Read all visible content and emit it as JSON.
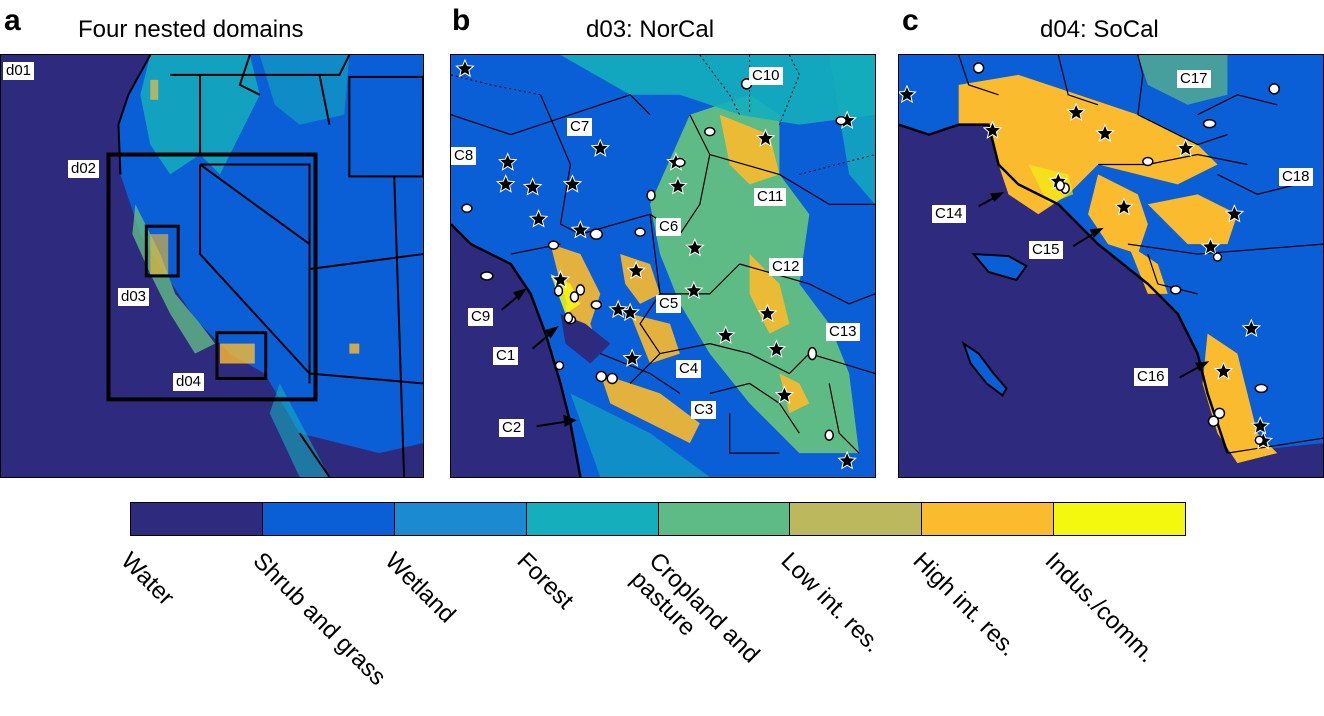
{
  "panels": {
    "a": {
      "letter": "a",
      "title": "Four nested domains",
      "labels": {
        "d01": "d01",
        "d02": "d02",
        "d03": "d03",
        "d04": "d04"
      }
    },
    "b": {
      "letter": "b",
      "title": "d03: NorCal",
      "labels": [
        "C10",
        "C7",
        "C8",
        "C11",
        "C6",
        "C12",
        "C5",
        "C9",
        "C1",
        "C13",
        "C4",
        "C3",
        "C2"
      ]
    },
    "c": {
      "letter": "c",
      "title": "d04: SoCal",
      "labels": [
        "C17",
        "C18",
        "C14",
        "C15",
        "C16"
      ]
    }
  },
  "legend": {
    "colors": [
      "#2e2a7e",
      "#0b5fd6",
      "#1b8ad1",
      "#14aebc",
      "#5fbb85",
      "#bcb85e",
      "#fbbb2e",
      "#f4f80f"
    ],
    "labels": [
      "Water",
      "Shrub and grass",
      "Wetland",
      "Forest",
      "Cropland and\npasture",
      "Low int. res.",
      "High int. res.",
      "Indus./comm."
    ]
  },
  "icons": {
    "monitoring_station": "star-icon",
    "site": "ellipse-marker-icon",
    "pointer": "arrow-icon"
  }
}
